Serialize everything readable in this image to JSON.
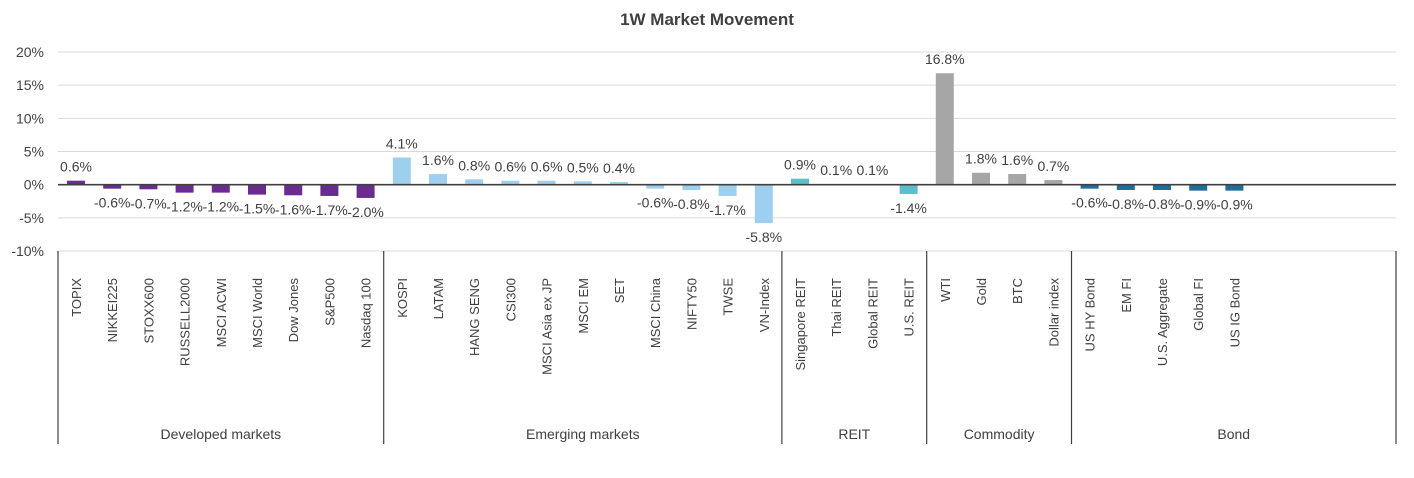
{
  "chart_data": {
    "type": "bar",
    "title": "1W Market Movement",
    "xlabel": "",
    "ylabel": "",
    "ylim": [
      -10,
      20
    ],
    "yticks": [
      "20%",
      "15%",
      "10%",
      "5%",
      "0%",
      "-5%",
      "-10%"
    ],
    "ytick_values": [
      20,
      15,
      10,
      5,
      0,
      -5,
      -10
    ],
    "grid": true,
    "legend": "none",
    "groups": [
      {
        "name": "Developed  markets",
        "color": "#6a2c91",
        "categories": [
          "TOPIX",
          "NIKKEI225",
          "STOXX600",
          "RUSSELL2000",
          "MSCI ACWI",
          "MSCI World",
          "Dow Jones",
          "S&P500",
          "Nasdaq 100"
        ],
        "values": [
          0.6,
          -0.6,
          -0.7,
          -1.2,
          -1.2,
          -1.5,
          -1.6,
          -1.7,
          -2.0
        ],
        "labels": [
          "0.6%",
          "-0.6%",
          "-0.7%",
          "-1.2%",
          "-1.2%",
          "-1.5%",
          "-1.6%",
          "-1.7%",
          "-2.0%"
        ]
      },
      {
        "name": "Emerging markets",
        "color": "#9fcfef",
        "categories": [
          "KOSPI",
          "LATAM",
          "HANG SENG",
          "CSI300",
          "MSCI Asia ex JP",
          "MSCI EM",
          "SET",
          "MSCI China",
          "NIFTY50",
          "TWSE",
          "VN-Index"
        ],
        "values": [
          4.1,
          1.6,
          0.8,
          0.6,
          0.6,
          0.5,
          0.4,
          -0.6,
          -0.8,
          -1.7,
          -5.8
        ],
        "labels": [
          "4.1%",
          "1.6%",
          "0.8%",
          "0.6%",
          "0.6%",
          "0.5%",
          "0.4%",
          "-0.6%",
          "-0.8%",
          "-1.7%",
          "-5.8%"
        ]
      },
      {
        "name": "REIT",
        "color": "#5bc0cc",
        "categories": [
          "Singapore REIT",
          "Thai REIT",
          "Global REIT",
          "U.S. REIT"
        ],
        "values": [
          0.9,
          0.1,
          0.1,
          -1.4
        ],
        "labels": [
          "0.9%",
          "0.1%",
          "0.1%",
          "-1.4%"
        ]
      },
      {
        "name": "Commodity",
        "color": "#a6a6a6",
        "categories": [
          "WTI",
          "Gold",
          "BTC",
          "Dollar index"
        ],
        "values": [
          16.8,
          1.8,
          1.6,
          0.7
        ],
        "labels": [
          "16.8%",
          "1.8%",
          "1.6%",
          "0.7%"
        ]
      },
      {
        "name": "Bond",
        "color": "#1f6e99",
        "categories": [
          "US HY Bond",
          "EM FI",
          "U.S. Aggregate",
          "Global FI",
          "US IG Bond"
        ],
        "values": [
          -0.6,
          -0.8,
          -0.8,
          -0.9,
          -0.9
        ],
        "labels": [
          "-0.6%",
          "-0.8%",
          "-0.8%",
          "-0.9%",
          "-0.9%"
        ]
      }
    ]
  }
}
